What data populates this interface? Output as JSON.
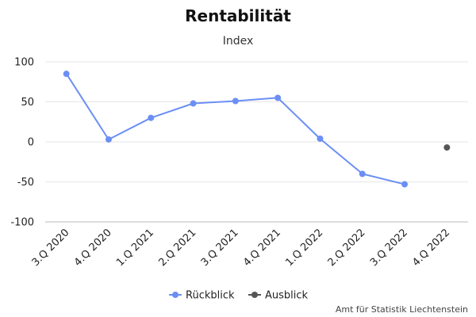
{
  "chart_data": {
    "type": "line",
    "title": "Rentabilität",
    "subtitle": "Index",
    "categories": [
      "3.Q 2020",
      "4.Q 2020",
      "1.Q 2021",
      "2.Q 2021",
      "3.Q 2021",
      "4.Q 2021",
      "1.Q 2022",
      "2.Q 2022",
      "3.Q 2022",
      "4.Q 2022"
    ],
    "ylim": [
      -100,
      100
    ],
    "yticks": [
      "100",
      "50",
      "0",
      "-50",
      "-100"
    ],
    "ytick_values": [
      100,
      50,
      0,
      -50,
      -100
    ],
    "grid": true,
    "legend_position": "bottom-center",
    "series": [
      {
        "name": "Rückblick",
        "color": "#6b8ff5",
        "values": [
          85,
          3,
          30,
          48,
          51,
          55,
          4,
          -40,
          -53,
          null
        ]
      },
      {
        "name": "Ausblick",
        "color": "#555555",
        "values": [
          null,
          null,
          null,
          null,
          null,
          null,
          null,
          null,
          null,
          -7
        ]
      }
    ],
    "credit": "Amt für Statistik Liechtenstein"
  }
}
